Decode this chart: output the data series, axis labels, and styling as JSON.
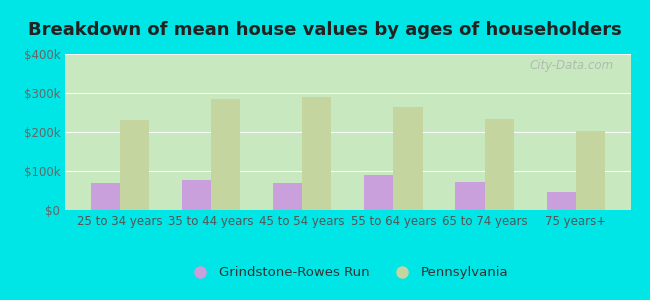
{
  "title": "Breakdown of mean house values by ages of householders",
  "categories": [
    "25 to 34 years",
    "35 to 44 years",
    "45 to 54 years",
    "55 to 64 years",
    "65 to 74 years",
    "75 years+"
  ],
  "grindstone_values": [
    70000,
    78000,
    68000,
    90000,
    73000,
    45000
  ],
  "pennsylvania_values": [
    232000,
    285000,
    290000,
    263000,
    234000,
    202000
  ],
  "grindstone_color": "#c9a0dc",
  "pennsylvania_color": "#c5d5a0",
  "background_color": "#00e5e5",
  "plot_bg_top": "#f0faf0",
  "plot_bg_bottom": "#d0edd0",
  "ylim": [
    0,
    400000
  ],
  "yticks": [
    0,
    100000,
    200000,
    300000,
    400000
  ],
  "ytick_labels": [
    "$0",
    "$100k",
    "$200k",
    "$300k",
    "$400k"
  ],
  "legend_label_1": "Grindstone-Rowes Run",
  "legend_label_2": "Pennsylvania",
  "bar_width": 0.32,
  "title_fontsize": 13,
  "tick_fontsize": 8.5,
  "legend_fontsize": 9.5,
  "watermark": "City-Data.com"
}
